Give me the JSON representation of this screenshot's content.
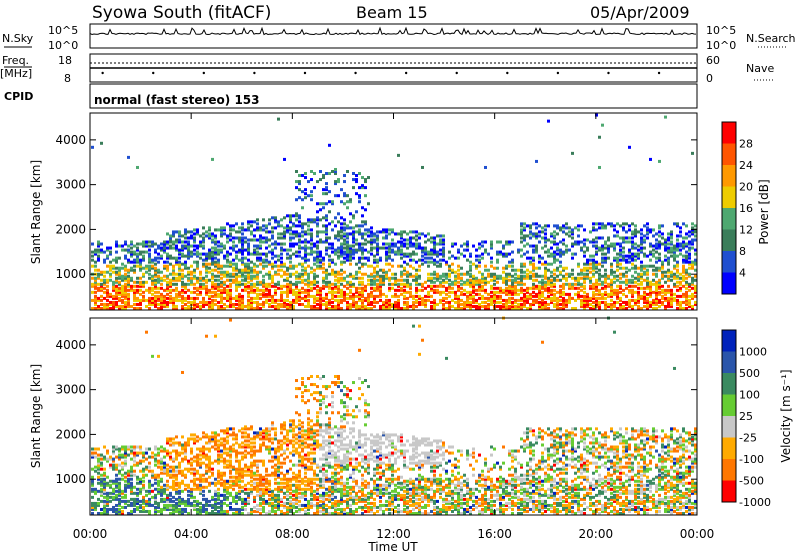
{
  "header": {
    "title": "Syowa South (fitACF)",
    "beam": "Beam 15",
    "date": "05/Apr/2009"
  },
  "panels": {
    "nsky": {
      "label": "N.Sky",
      "ticks_left": [
        "10^5",
        "10^0"
      ],
      "ticks_right": [
        "10^5",
        "10^0"
      ],
      "right_label": "N.Search"
    },
    "freq": {
      "label1": "Freq.",
      "label2": "[MHz]",
      "ticks_left": [
        "18",
        "8"
      ],
      "ticks_right": [
        "60",
        "0"
      ],
      "right_label": "Nave"
    },
    "cpid": {
      "label": "CPID",
      "text": "normal (fast stereo) 153"
    }
  },
  "colors": {
    "power": [
      "#0000ff",
      "#1f4fd0",
      "#3a7d5a",
      "#4ea870",
      "#eecc00",
      "#ff9900",
      "#ff5500",
      "#ff0000"
    ],
    "velocity": [
      "#0022bb",
      "#2a55aa",
      "#3a8a60",
      "#66cc33",
      "#c8c8c8",
      "#ffaa00",
      "#ff7700",
      "#ff0000"
    ]
  },
  "chart_data": [
    {
      "type": "heatmap",
      "name": "power",
      "ylabel": "Slant Range [km]",
      "yticks": [
        "1000",
        "2000",
        "3000",
        "4000"
      ],
      "ylim": [
        200,
        4600
      ],
      "colorbar_label": "Power [dB]",
      "colorbar_ticks": [
        "4",
        "8",
        "12",
        "16",
        "20",
        "24",
        "28"
      ],
      "colorbar_range": [
        0,
        32
      ]
    },
    {
      "type": "heatmap",
      "name": "velocity",
      "ylabel": "Slant Range [km]",
      "yticks": [
        "1000",
        "2000",
        "3000",
        "4000"
      ],
      "ylim": [
        200,
        4600
      ],
      "colorbar_label": "Velocity [m s⁻¹]",
      "colorbar_ticks": [
        "1000",
        "500",
        "100",
        "25",
        "-25",
        "-100",
        "-500",
        "-1000"
      ]
    }
  ],
  "xaxis": {
    "label": "Time UT",
    "ticks": [
      "00:00",
      "04:00",
      "08:00",
      "12:00",
      "16:00",
      "20:00",
      "00:00"
    ],
    "range_hours": [
      0,
      24
    ]
  }
}
